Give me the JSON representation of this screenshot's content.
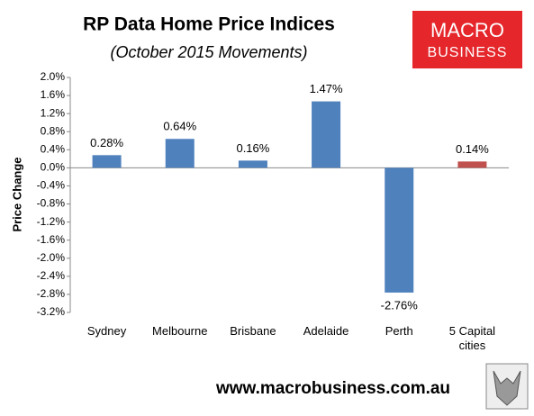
{
  "chart_data": {
    "type": "bar",
    "title": "RP Data Home Price Indices",
    "subtitle": "(October 2015 Movements)",
    "y_label": "Price Change",
    "categories": [
      "Sydney",
      "Melbourne",
      "Brisbane",
      "Adelaide",
      "Perth",
      "5 Capital cities"
    ],
    "values": [
      0.28,
      0.64,
      0.16,
      1.47,
      -2.76,
      0.14
    ],
    "value_labels": [
      "0.28%",
      "0.64%",
      "0.16%",
      "1.47%",
      "-2.76%",
      "0.14%"
    ],
    "colors": [
      "#4f81bd",
      "#4f81bd",
      "#4f81bd",
      "#4f81bd",
      "#4f81bd",
      "#c0504d"
    ],
    "ylim": [
      -3.2,
      2.0
    ],
    "yticks": [
      {
        "value": 2.0,
        "label": "2.0%"
      },
      {
        "value": 1.6,
        "label": "1.6%"
      },
      {
        "value": 1.2,
        "label": "1.2%"
      },
      {
        "value": 0.8,
        "label": "0.8%"
      },
      {
        "value": 0.4,
        "label": "0.4%"
      },
      {
        "value": 0.0,
        "label": "0.0%"
      },
      {
        "value": -0.4,
        "label": "-0.4%"
      },
      {
        "value": -0.8,
        "label": "-0.8%"
      },
      {
        "value": -1.2,
        "label": "-1.2%"
      },
      {
        "value": -1.6,
        "label": "-1.6%"
      },
      {
        "value": -2.0,
        "label": "-2.0%"
      },
      {
        "value": -2.4,
        "label": "-2.4%"
      },
      {
        "value": -2.8,
        "label": "-2.8%"
      },
      {
        "value": -3.2,
        "label": "-3.2%"
      }
    ],
    "grid": false
  },
  "logo": {
    "line1": "MACRO",
    "line2": "BUSINESS"
  },
  "footer": "www.macrobusiness.com.au"
}
